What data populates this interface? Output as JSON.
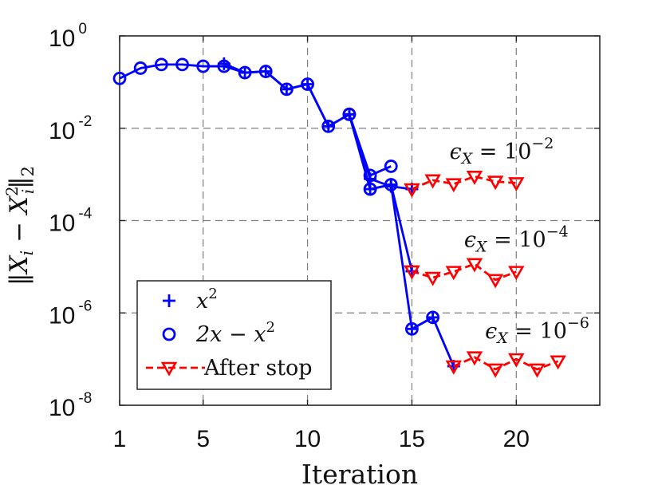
{
  "chart_data": {
    "type": "line",
    "y_scale": "log",
    "xlabel": "Iteration",
    "ylabel_parts": {
      "norm": "‖",
      "X": "X",
      "i": "i",
      "minus": "−",
      "sq": "2",
      "two": "2"
    },
    "xlim": [
      1,
      24
    ],
    "ylim": [
      1e-08,
      1
    ],
    "x_ticks": [
      {
        "value": 1,
        "label": "1"
      },
      {
        "value": 5,
        "label": "5"
      },
      {
        "value": 10,
        "label": "10"
      },
      {
        "value": 15,
        "label": "15"
      },
      {
        "value": 20,
        "label": "20"
      }
    ],
    "y_ticks": [
      {
        "value": 1,
        "base": "10",
        "exp": "0"
      },
      {
        "value": 0.01,
        "base": "10",
        "exp": "-2"
      },
      {
        "value": 0.0001,
        "base": "10",
        "exp": "-4"
      },
      {
        "value": 1e-06,
        "base": "10",
        "exp": "-6"
      },
      {
        "value": 1e-08,
        "base": "10",
        "exp": "-8"
      }
    ],
    "grid": true,
    "series": [
      {
        "name": "x^2 (eps 1e-2)",
        "marker": "plus",
        "color": "#0000ff",
        "x": [
          6,
          7,
          8,
          9,
          10,
          11,
          12,
          13,
          14,
          15
        ],
        "y": [
          0.25,
          0.16,
          0.17,
          0.07,
          0.09,
          0.011,
          0.02,
          0.0008,
          0.00055,
          0.00048
        ]
      },
      {
        "name": "2x-x^2 (eps 1e-2)",
        "marker": "circle",
        "color": "#0000ff",
        "x": [
          1,
          2,
          3,
          4,
          5,
          6,
          7,
          8,
          9,
          10,
          11,
          12,
          13,
          14
        ],
        "y": [
          0.12,
          0.2,
          0.24,
          0.24,
          0.22,
          0.22,
          0.16,
          0.17,
          0.07,
          0.09,
          0.011,
          0.02,
          0.00095,
          0.0015
        ]
      },
      {
        "name": "x^2 (eps 1e-4)",
        "marker": "plus",
        "color": "#0000ff",
        "x": [
          12,
          13,
          14,
          15
        ],
        "y": [
          0.02,
          0.00048,
          0.0006,
          8e-06
        ]
      },
      {
        "name": "2x-x^2 (eps 1e-4)",
        "marker": "circle",
        "color": "#0000ff",
        "x": [
          12,
          13,
          14
        ],
        "y": [
          0.02,
          0.00048,
          0.0006
        ]
      },
      {
        "name": "x^2 (eps 1e-6)",
        "marker": "plus",
        "color": "#0000ff",
        "x": [
          14,
          15,
          16,
          17
        ],
        "y": [
          0.0006,
          4.5e-07,
          8e-07,
          7e-08
        ]
      },
      {
        "name": "2x-x^2 (eps 1e-6)",
        "marker": "circle",
        "color": "#0000ff",
        "x": [
          15,
          16
        ],
        "y": [
          4.5e-07,
          8e-07
        ]
      },
      {
        "name": "After stop (eps 1e-2)",
        "marker": "triangle-down",
        "color": "#ff0000",
        "dashed": true,
        "x": [
          15,
          16,
          17,
          18,
          19,
          20
        ],
        "y": [
          0.00048,
          0.00075,
          0.00062,
          0.0009,
          0.0007,
          0.00065
        ]
      },
      {
        "name": "After stop (eps 1e-4)",
        "marker": "triangle-down",
        "color": "#ff0000",
        "dashed": true,
        "x": [
          15,
          16,
          17,
          18,
          19,
          20
        ],
        "y": [
          8e-06,
          5.8e-06,
          7.8e-06,
          1.15e-05,
          5.2e-06,
          7.8e-06
        ]
      },
      {
        "name": "After stop (eps 1e-6)",
        "marker": "triangle-down",
        "color": "#ff0000",
        "dashed": true,
        "x": [
          17,
          18,
          19,
          20,
          21,
          22
        ],
        "y": [
          7e-08,
          1.1e-07,
          6e-08,
          1e-07,
          6e-08,
          9e-08
        ]
      }
    ],
    "annotations": [
      {
        "x": 19.3,
        "y": 0.0022,
        "eps": "ϵ",
        "sub": "X",
        "eq": "=",
        "base": "10",
        "exp": "−2"
      },
      {
        "x": 20.0,
        "y": 2.7e-05,
        "eps": "ϵ",
        "sub": "X",
        "eq": "=",
        "base": "10",
        "exp": "−4"
      },
      {
        "x": 21.0,
        "y": 2.8e-07,
        "eps": "ϵ",
        "sub": "X",
        "eq": "=",
        "base": "10",
        "exp": "−6"
      }
    ],
    "legend": {
      "placement": "bottom-left",
      "entries": [
        {
          "marker": "plus",
          "color": "#0000ff",
          "label_base": "x",
          "label_exp": "2"
        },
        {
          "marker": "circle",
          "color": "#0000ff",
          "label_pre": "2x",
          "label_minus": " − ",
          "label_base": "x",
          "label_exp": "2"
        },
        {
          "marker": "triangle-down",
          "color": "#ff0000",
          "dashed": true,
          "label": "After stop"
        }
      ]
    }
  }
}
